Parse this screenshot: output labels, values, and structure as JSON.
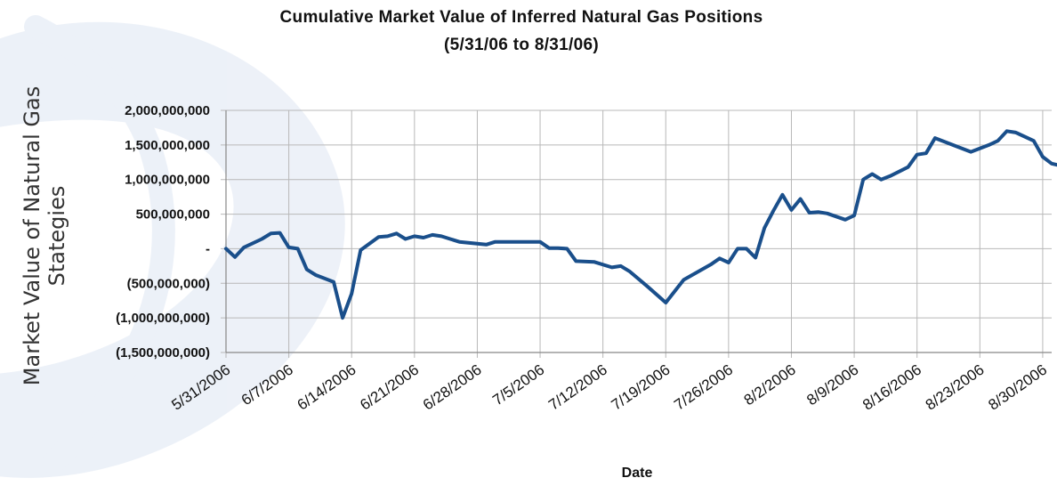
{
  "chart_data": {
    "type": "line",
    "title": "Cumulative Market Value of Inferred Natural Gas Positions",
    "subtitle": "(5/31/06 to 8/31/06)",
    "xlabel": "Date",
    "ylabel_lines": [
      "Market Value of Natural Gas",
      "Stategies"
    ],
    "ylim": [
      -1500000000,
      2000000000
    ],
    "y_ticks": [
      {
        "value": 2000000000,
        "label": "2,000,000,000"
      },
      {
        "value": 1500000000,
        "label": "1,500,000,000"
      },
      {
        "value": 1000000000,
        "label": "1,000,000,000"
      },
      {
        "value": 500000000,
        "label": "500,000,000"
      },
      {
        "value": 0,
        "label": "-"
      },
      {
        "value": -500000000,
        "label": "(500,000,000)"
      },
      {
        "value": -1000000000,
        "label": "(1,000,000,000)"
      },
      {
        "value": -1500000000,
        "label": "(1,500,000,000)"
      }
    ],
    "x_ticks": [
      "5/31/2006",
      "6/7/2006",
      "6/14/2006",
      "6/21/2006",
      "6/28/2006",
      "7/5/2006",
      "7/12/2006",
      "7/19/2006",
      "7/26/2006",
      "8/2/2006",
      "8/9/2006",
      "8/16/2006",
      "8/23/2006",
      "8/30/2006"
    ],
    "x_range_days": [
      0,
      92
    ],
    "grid": true,
    "legend": "none",
    "series": [
      {
        "color": "#1a4f8b",
        "points": [
          {
            "x": "5/31/2006",
            "y": 0
          },
          {
            "x": "6/1/2006",
            "y": -120000000
          },
          {
            "x": "6/2/2006",
            "y": 20000000
          },
          {
            "x": "6/4/2006",
            "y": 140000000
          },
          {
            "x": "6/5/2006",
            "y": 220000000
          },
          {
            "x": "6/6/2006",
            "y": 230000000
          },
          {
            "x": "6/7/2006",
            "y": 20000000
          },
          {
            "x": "6/8/2006",
            "y": 0
          },
          {
            "x": "6/9/2006",
            "y": -300000000
          },
          {
            "x": "6/10/2006",
            "y": -380000000
          },
          {
            "x": "6/12/2006",
            "y": -480000000
          },
          {
            "x": "6/13/2006",
            "y": -1000000000
          },
          {
            "x": "6/14/2006",
            "y": -650000000
          },
          {
            "x": "6/15/2006",
            "y": -20000000
          },
          {
            "x": "6/17/2006",
            "y": 170000000
          },
          {
            "x": "6/18/2006",
            "y": 180000000
          },
          {
            "x": "6/19/2006",
            "y": 220000000
          },
          {
            "x": "6/20/2006",
            "y": 140000000
          },
          {
            "x": "6/21/2006",
            "y": 180000000
          },
          {
            "x": "6/22/2006",
            "y": 160000000
          },
          {
            "x": "6/23/2006",
            "y": 200000000
          },
          {
            "x": "6/24/2006",
            "y": 180000000
          },
          {
            "x": "6/26/2006",
            "y": 100000000
          },
          {
            "x": "6/29/2006",
            "y": 60000000
          },
          {
            "x": "6/30/2006",
            "y": 100000000
          },
          {
            "x": "7/5/2006",
            "y": 100000000
          },
          {
            "x": "7/6/2006",
            "y": 10000000
          },
          {
            "x": "7/7/2006",
            "y": 10000000
          },
          {
            "x": "7/8/2006",
            "y": 0
          },
          {
            "x": "7/9/2006",
            "y": -180000000
          },
          {
            "x": "7/11/2006",
            "y": -190000000
          },
          {
            "x": "7/13/2006",
            "y": -270000000
          },
          {
            "x": "7/14/2006",
            "y": -250000000
          },
          {
            "x": "7/15/2006",
            "y": -330000000
          },
          {
            "x": "7/17/2006",
            "y": -550000000
          },
          {
            "x": "7/19/2006",
            "y": -780000000
          },
          {
            "x": "7/21/2006",
            "y": -450000000
          },
          {
            "x": "7/24/2006",
            "y": -230000000
          },
          {
            "x": "7/25/2006",
            "y": -140000000
          },
          {
            "x": "7/26/2006",
            "y": -200000000
          },
          {
            "x": "7/27/2006",
            "y": 0
          },
          {
            "x": "7/28/2006",
            "y": 0
          },
          {
            "x": "7/29/2006",
            "y": -130000000
          },
          {
            "x": "7/30/2006",
            "y": 300000000
          },
          {
            "x": "7/31/2006",
            "y": 550000000
          },
          {
            "x": "8/1/2006",
            "y": 780000000
          },
          {
            "x": "8/2/2006",
            "y": 560000000
          },
          {
            "x": "8/3/2006",
            "y": 720000000
          },
          {
            "x": "8/4/2006",
            "y": 520000000
          },
          {
            "x": "8/5/2006",
            "y": 530000000
          },
          {
            "x": "8/6/2006",
            "y": 510000000
          },
          {
            "x": "8/8/2006",
            "y": 420000000
          },
          {
            "x": "8/9/2006",
            "y": 480000000
          },
          {
            "x": "8/10/2006",
            "y": 1000000000
          },
          {
            "x": "8/11/2006",
            "y": 1080000000
          },
          {
            "x": "8/12/2006",
            "y": 1000000000
          },
          {
            "x": "8/13/2006",
            "y": 1050000000
          },
          {
            "x": "8/15/2006",
            "y": 1180000000
          },
          {
            "x": "8/16/2006",
            "y": 1360000000
          },
          {
            "x": "8/17/2006",
            "y": 1380000000
          },
          {
            "x": "8/18/2006",
            "y": 1600000000
          },
          {
            "x": "8/20/2006",
            "y": 1500000000
          },
          {
            "x": "8/22/2006",
            "y": 1400000000
          },
          {
            "x": "8/24/2006",
            "y": 1500000000
          },
          {
            "x": "8/25/2006",
            "y": 1560000000
          },
          {
            "x": "8/26/2006",
            "y": 1700000000
          },
          {
            "x": "8/27/2006",
            "y": 1680000000
          },
          {
            "x": "8/29/2006",
            "y": 1560000000
          },
          {
            "x": "8/30/2006",
            "y": 1330000000
          },
          {
            "x": "8/31/2006",
            "y": 1230000000
          },
          {
            "x": "9/1/2006",
            "y": 1200000000
          }
        ]
      }
    ]
  }
}
